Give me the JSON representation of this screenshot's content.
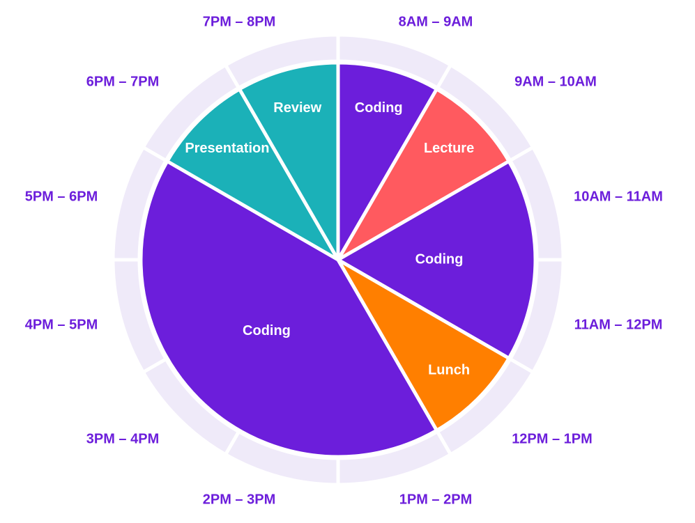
{
  "chart_data": {
    "type": "pie",
    "categories": [
      "Coding",
      "Lecture",
      "Coding",
      "Lunch",
      "Coding",
      "Presentation",
      "Review"
    ],
    "values": [
      1,
      1,
      2,
      1,
      5,
      1,
      1
    ],
    "colors": [
      "#6c1edb",
      "#ff5a5f",
      "#6c1edb",
      "#ff7f00",
      "#6c1edb",
      "#1bb1b8",
      "#1bb1b8"
    ],
    "slots": [
      "8AM – 9AM",
      "9AM – 10AM",
      "10AM – 11AM",
      "11AM – 12PM",
      "12PM – 1PM",
      "1PM – 2PM",
      "2PM – 3PM",
      "3PM – 4PM",
      "4PM – 5PM",
      "5PM – 6PM",
      "6PM – 7PM",
      "7PM – 8PM"
    ]
  }
}
